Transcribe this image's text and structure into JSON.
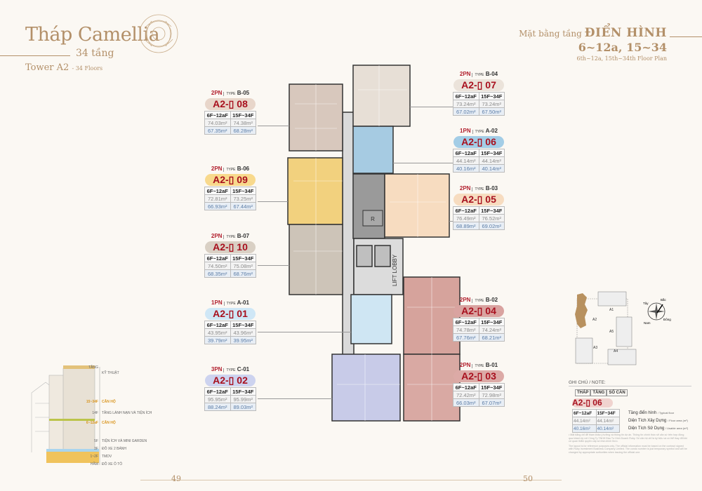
{
  "header_left": {
    "title": "Tháp Camellia",
    "floors_vn": "34 tầng",
    "tower": "Tower A2",
    "tower_floors_en": "- 34 Floors"
  },
  "header_right": {
    "prefix": "Mặt bằng tầng",
    "emphasis": "ĐIỂN HÌNH",
    "range": "6~12a, 15~34",
    "subtitle_en": "6th~12a, 15th~34th Floor Plan"
  },
  "table_headers": [
    "6F~12aF",
    "15F~34F"
  ],
  "units": [
    {
      "code": "A2-▯ 08",
      "bedrooms": "2PN",
      "type_label": "TYPE",
      "type": "B-05",
      "color": "#e8d6ca",
      "area": [
        "74.03m²",
        "74.38m²"
      ],
      "usable": [
        "67.35m²",
        "68.28m²"
      ]
    },
    {
      "code": "A2-▯ 09",
      "bedrooms": "2PN",
      "type_label": "TYPE",
      "type": "B-06",
      "color": "#f8d98c",
      "area": [
        "72.81m²",
        "73.25m²"
      ],
      "usable": [
        "66.93m²",
        "67.44m²"
      ]
    },
    {
      "code": "A2-▯ 10",
      "bedrooms": "2PN",
      "type_label": "TYPE",
      "type": "B-07",
      "color": "#d9d0c4",
      "area": [
        "74.50m²",
        "75.08m²"
      ],
      "usable": [
        "68.35m²",
        "68.76m²"
      ]
    },
    {
      "code": "A2-▯ 01",
      "bedrooms": "1PN",
      "type_label": "TYPE",
      "type": "A-01",
      "color": "#cfe7f6",
      "area": [
        "43.95m²",
        "43.96m²"
      ],
      "usable": [
        "39.79m²",
        "39.95m²"
      ]
    },
    {
      "code": "A2-▯ 02",
      "bedrooms": "3PN",
      "type_label": "TYPE",
      "type": "C-01",
      "color": "#cdd3ef",
      "area": [
        "95.95m²",
        "95.99m²"
      ],
      "usable": [
        "88.24m²",
        "89.03m²"
      ]
    },
    {
      "code": "A2-▯ 07",
      "bedrooms": "2PN",
      "type_label": "TYPE",
      "type": "B-04",
      "color": "#ebe3da",
      "area": [
        "73.24m²",
        "73.24m²"
      ],
      "usable": [
        "67.02m²",
        "67.50m²"
      ]
    },
    {
      "code": "A2-▯ 06",
      "bedrooms": "1PN",
      "type_label": "TYPE",
      "type": "A-02",
      "color": "#a3cde6",
      "area": [
        "44.14m²",
        "44.14m²"
      ],
      "usable": [
        "40.16m²",
        "40.14m²"
      ]
    },
    {
      "code": "A2-▯ 05",
      "bedrooms": "2PN",
      "type_label": "TYPE",
      "type": "B-03",
      "color": "#f7dcc0",
      "area": [
        "76.49m²",
        "76.52m²"
      ],
      "usable": [
        "68.89m²",
        "69.02m²"
      ]
    },
    {
      "code": "A2-▯ 04",
      "bedrooms": "2PN",
      "type_label": "TYPE",
      "type": "B-02",
      "color": "#d9a3a0",
      "area": [
        "74.78m²",
        "74.24m²"
      ],
      "usable": [
        "67.76m²",
        "68.21m²"
      ]
    },
    {
      "code": "A2-▯ 03",
      "bedrooms": "2PN",
      "type_label": "TYPE",
      "type": "B-01",
      "color": "#dcaaa6",
      "area": [
        "72.42m²",
        "72.98m²"
      ],
      "usable": [
        "66.03m²",
        "67.07m²"
      ]
    }
  ],
  "plan": {
    "lobby_label": "LIFT LOBBY",
    "room_label": "R"
  },
  "building_section": {
    "labels": [
      {
        "floor": "TẦNG",
        "use": "KỸ THUẬT"
      },
      {
        "floor": "15~34F",
        "use": "CĂN HỘ"
      },
      {
        "floor": "14F",
        "use": "TẦNG LÁNH NẠN VÀ TIỆN ÍCH"
      },
      {
        "floor": "6~12aF",
        "use": "CĂN HỘ"
      },
      {
        "floor": "5F",
        "use": "TIỆN ÍCH VÀ MINI GARDEN"
      },
      {
        "floor": "3F",
        "use": "ĐỖ XE 2 BÁNH"
      },
      {
        "floor": "1~2F",
        "use": "TMDV"
      },
      {
        "floor": "HẦM",
        "use": "ĐỖ XE Ô TÔ"
      }
    ]
  },
  "key_plan": {
    "towers": [
      "A1",
      "A2",
      "A3",
      "A4",
      "A5"
    ],
    "compass": {
      "north": "Bắc",
      "south": "Nam",
      "east": "Đông",
      "west": "Tây"
    },
    "highlight_color": "#b8915f"
  },
  "note": {
    "title": "GHI CHÚ / NOTE:",
    "header": [
      "THÁP",
      "TẦNG",
      "SỐ CĂN"
    ],
    "example_code": "A2-▯ 06",
    "table_headers": [
      "6F~12aF",
      "15F~34F"
    ],
    "area": [
      "44.14m²",
      "44.14m²"
    ],
    "usable": [
      "40.16m²",
      "40.14m²"
    ],
    "labels": [
      {
        "vn": "Tầng điển hình",
        "en": "/ Typical floor"
      },
      {
        "vn": "Diện Tích Xây Dựng",
        "en": "/ Floor area (m²)"
      },
      {
        "vn": "Diện Tích Sử Dụng",
        "en": "/ Usable area (m²)"
      }
    ],
    "disclaimer_vn": "• Mặt bằng chỉ để tham khảo ý tưởng và thông tin dự án. Thông tin chính thức sẽ căn cứ trên hợp đồng qua khách ký với Công Ty TNHH Đầu Tư Kinh Doanh Ruby. Số căn hộ chỉ là ký hiệu và có thể thay đổi khi cơ quan thẩm quyền cấp số nhà chính thức.",
    "disclaimer_en": "The layout is for reference purposes only. The official information must be based on the contract signed with Ruby Investment Business Company Limited. The condo number is just temporary symbol and will be changed by appropriate authorities when issuing the official one."
  },
  "pages": {
    "left": "49",
    "right": "50"
  },
  "colors": {
    "gold": "#b39069",
    "unit_code": "#a8101e"
  }
}
